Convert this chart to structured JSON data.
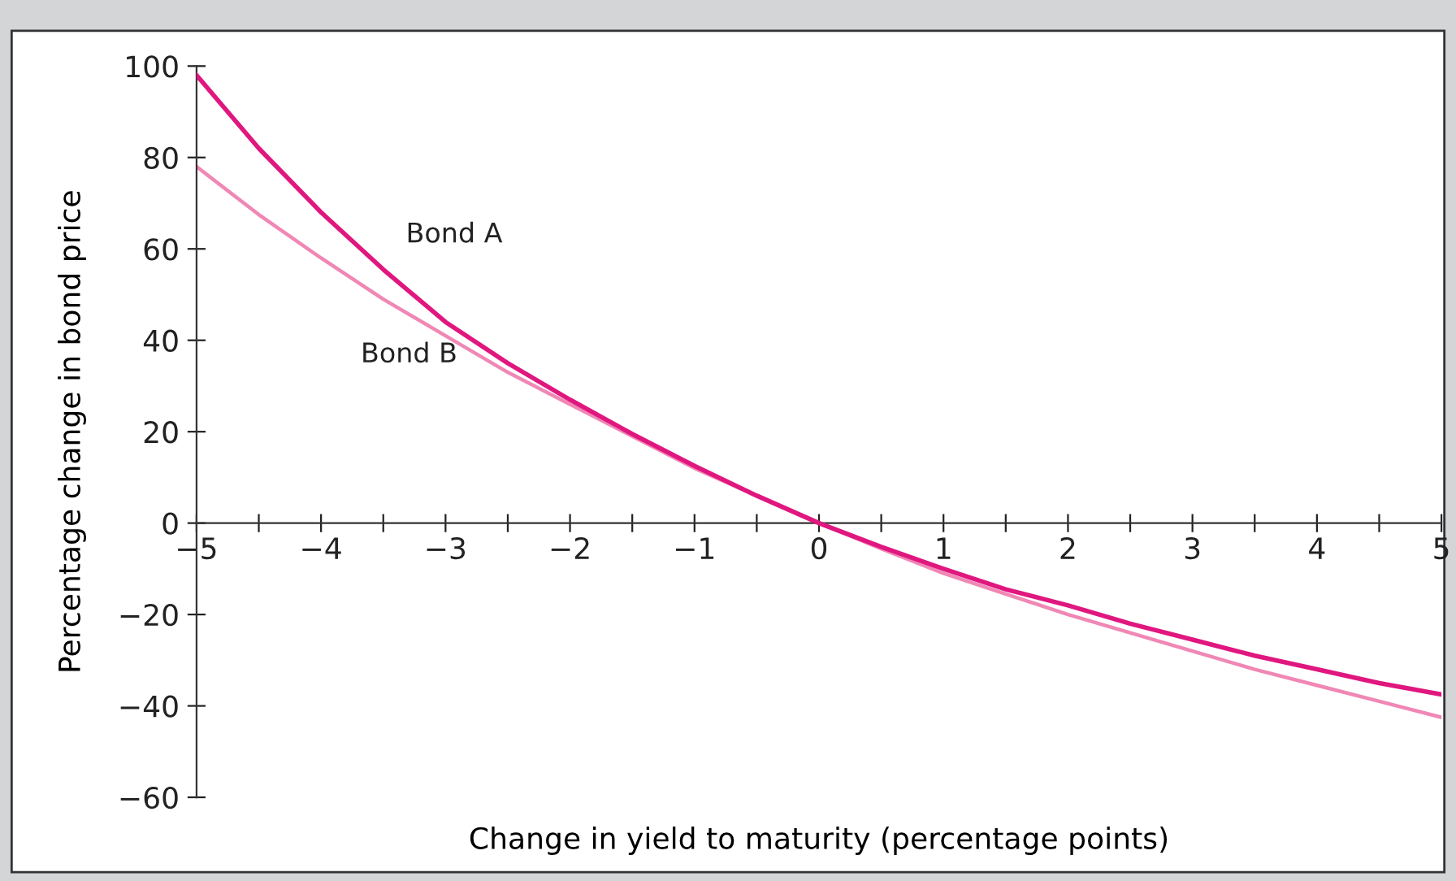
{
  "chart_data": {
    "type": "line",
    "xlabel": "Change in yield to maturity (percentage points)",
    "ylabel": "Percentage change in bond price",
    "x": [
      -5,
      -4.5,
      -4,
      -3.5,
      -3,
      -2.5,
      -2,
      -1.5,
      -1,
      -0.5,
      0,
      0.5,
      1,
      1.5,
      2,
      2.5,
      3,
      3.5,
      4,
      4.5,
      5
    ],
    "series": [
      {
        "name": "Bond A",
        "color": "#e0177f",
        "values": [
          98,
          82,
          68,
          55.5,
          44,
          35,
          27,
          19.5,
          12.5,
          6,
          0,
          -5.2,
          -10,
          -14.5,
          -18,
          -22,
          -25.5,
          -29,
          -32,
          -35,
          -37.5
        ]
      },
      {
        "name": "Bond B",
        "color": "#f087b5",
        "values": [
          78,
          67.5,
          58,
          49,
          41,
          33,
          26,
          19,
          12,
          6,
          0,
          -5.6,
          -11,
          -15.5,
          -20,
          -24,
          -28,
          -32,
          -35.5,
          -39,
          -42.5
        ]
      }
    ],
    "xlim": [
      -5,
      5
    ],
    "ylim": [
      -60,
      100
    ],
    "xticks": [
      -5,
      {
        "value": -4.5,
        "label": null
      },
      -4,
      {
        "value": -3.5,
        "label": null
      },
      -3,
      {
        "value": -2.5,
        "label": null
      },
      -2,
      {
        "value": -1.5,
        "label": null
      },
      -1,
      {
        "value": -0.5,
        "label": null
      },
      0,
      {
        "value": 0.5,
        "label": null
      },
      1,
      {
        "value": 1.5,
        "label": null
      },
      2,
      {
        "value": 2.5,
        "label": null
      },
      3,
      {
        "value": 3.5,
        "label": null
      },
      4,
      {
        "value": 4.5,
        "label": null
      },
      5
    ],
    "yticks": [
      -60,
      -40,
      -20,
      0,
      20,
      40,
      60,
      80,
      100
    ],
    "grid": false,
    "legend": false,
    "marker": "none",
    "line_style": "solid"
  }
}
